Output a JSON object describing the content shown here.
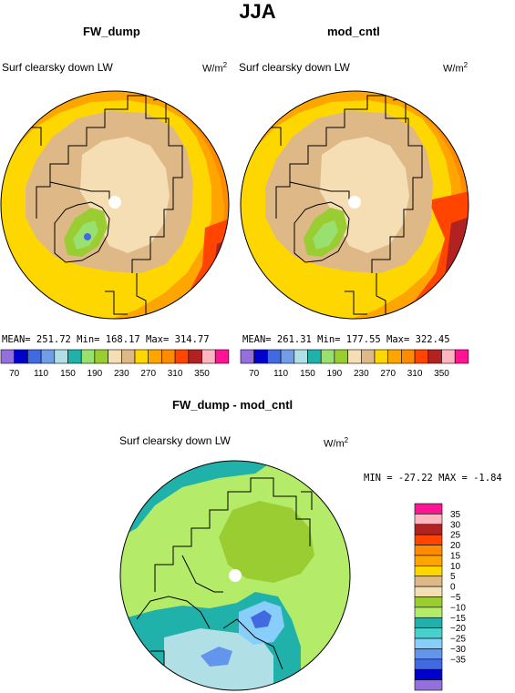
{
  "title": "JJA",
  "panels": [
    {
      "title": "FW_dump",
      "subtitle": "Surf clearsky down LW",
      "unit_base": "W/m",
      "unit_exp": "2",
      "stats": "MEAN= 251.72   Min= 168.17   Max= 314.77"
    },
    {
      "title": "mod_cntl",
      "subtitle": "Surf clearsky down LW",
      "unit_base": "W/m",
      "unit_exp": "2",
      "stats": "MEAN= 261.31   Min= 177.55   Max= 322.45"
    },
    {
      "title": "FW_dump - mod_cntl",
      "subtitle": "Surf clearsky down LW",
      "unit_base": "W/m",
      "unit_exp": "2",
      "stats": "MIN = -27.22 MAX =  -1.84"
    }
  ],
  "colorbar_horizontal": {
    "colors": [
      "#9370db",
      "#0000cd",
      "#4169e1",
      "#6f9de6",
      "#b0e0e6",
      "#20b2aa",
      "#98e070",
      "#9acd32",
      "#f5deb3",
      "#deb887",
      "#ffd700",
      "#ffa500",
      "#ff8c00",
      "#ff4500",
      "#b22222",
      "#ffb6c1",
      "#ff1493"
    ],
    "labels": [
      "70",
      "110",
      "150",
      "190",
      "230",
      "270",
      "310",
      "350"
    ]
  },
  "colorbar_vertical": {
    "colors_top_to_bottom": [
      "#ff1493",
      "#ffb6c1",
      "#b22222",
      "#ff4500",
      "#ff8c00",
      "#ffa500",
      "#ffd700",
      "#deb887",
      "#f5deb3",
      "#9acd32",
      "#b4ec6a",
      "#20b2aa",
      "#48d1cc",
      "#87cefa",
      "#6495ed",
      "#4169e1",
      "#0000cd",
      "#9370db"
    ],
    "labels": [
      "35",
      "30",
      "25",
      "20",
      "15",
      "10",
      "5",
      "0",
      "−5",
      "−10",
      "−15",
      "−20",
      "−25",
      "−30",
      "−35"
    ]
  }
}
